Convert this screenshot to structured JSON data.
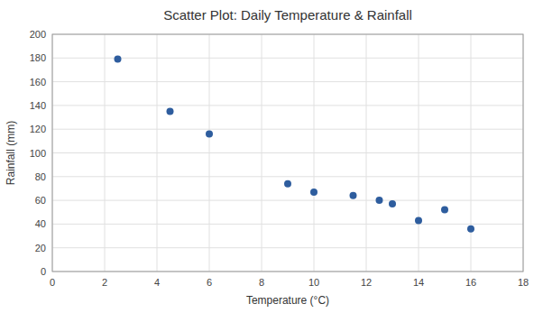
{
  "chart_data": {
    "type": "scatter",
    "title": "Scatter Plot: Daily Temperature & Rainfall",
    "x_label": "Temperature (°C)",
    "y_label": "Rainfall (mm)",
    "x": [
      2.5,
      4.5,
      6.0,
      9.0,
      10.0,
      11.5,
      12.5,
      13.0,
      14.0,
      15.0,
      16.0
    ],
    "values": [
      179,
      135,
      116,
      74,
      67,
      64,
      60,
      57,
      43,
      52,
      36
    ],
    "xlim": [
      0,
      18
    ],
    "ylim": [
      0,
      200
    ],
    "xticks": [
      0,
      2,
      4,
      6,
      8,
      10,
      12,
      14,
      16,
      18
    ],
    "yticks": [
      0,
      20,
      40,
      60,
      80,
      100,
      120,
      140,
      160,
      180,
      200
    ],
    "color": "#2E5D9E",
    "marker": "circle",
    "grid": true
  }
}
